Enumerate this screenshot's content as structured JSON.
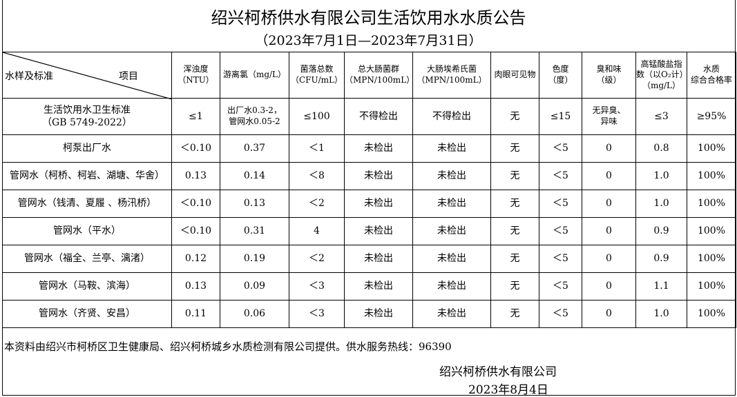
{
  "title": "绍兴柯桥供水有限公司生活饮用水水质公告",
  "subtitle": "（2023年7月1日—2023年7月31日）",
  "header": {
    "corner_left": "水样及标准",
    "corner_right": "项目",
    "columns": [
      [
        "浑浊度",
        "（NTU）"
      ],
      [
        "游离氯（mg/L）"
      ],
      [
        "菌落总数",
        "（CFU/mL）"
      ],
      [
        "总大肠菌群",
        "（MPN/100mL）"
      ],
      [
        "大肠埃希氏菌",
        "（MPN/100mL）"
      ],
      [
        "肉眼可见物"
      ],
      [
        "色度",
        "（度）"
      ],
      [
        "臭和味",
        "（级）"
      ],
      [
        "高锰酸盐指",
        "数（以O₂计）",
        "（mg/L）"
      ],
      [
        "水质",
        "综合合格率"
      ]
    ]
  },
  "standard": {
    "name": [
      "生活饮用水卫生标准",
      "（GB 5749-2022）"
    ],
    "values": [
      [
        "≤1"
      ],
      [
        "出厂水0.3-2，",
        "管网水0.05-2"
      ],
      [
        "≤100"
      ],
      [
        "不得检出"
      ],
      [
        "不得检出"
      ],
      [
        "无"
      ],
      [
        "≤15"
      ],
      [
        "无异臭、",
        "异味"
      ],
      [
        "≤3"
      ],
      [
        "≥95%"
      ]
    ]
  },
  "rows": [
    {
      "name": "柯泵出厂水",
      "values": [
        "＜0.10",
        "0.37",
        "＜1",
        "未检出",
        "未检出",
        "无",
        "＜5",
        "0",
        "0.8",
        "100%"
      ]
    },
    {
      "name": "管网水（柯桥、柯岩、湖塘、华舍）",
      "values": [
        "0.13",
        "0.14",
        "＜8",
        "未检出",
        "未检出",
        "无",
        "＜5",
        "0",
        "1.0",
        "100%"
      ]
    },
    {
      "name": "管网水（钱清、夏履 、杨汛桥）",
      "values": [
        "＜0.10",
        "0.13",
        "＜2",
        "未检出",
        "未检出",
        "无",
        "＜5",
        "0",
        "1.0",
        "100%"
      ]
    },
    {
      "name": "管网水（平水）",
      "values": [
        "＜0.10",
        "0.31",
        "4",
        "未检出",
        "未检出",
        "无",
        "＜5",
        "0",
        "0.9",
        "100%"
      ]
    },
    {
      "name": "管网水（福全、兰亭、漓渚）",
      "values": [
        "0.12",
        "0.19",
        "＜2",
        "未检出",
        "未检出",
        "无",
        "＜5",
        "0",
        "0.9",
        "100%"
      ]
    },
    {
      "name": "管网水（马鞍、滨海）",
      "values": [
        "0.13",
        "0.09",
        "＜3",
        "未检出",
        "未检出",
        "无",
        "＜5",
        "0",
        "1.1",
        "100%"
      ]
    },
    {
      "name": "管网水（齐贤、安昌）",
      "values": [
        "0.11",
        "0.06",
        "＜3",
        "未检出",
        "未检出",
        "无",
        "＜5",
        "0",
        "1.0",
        "100%"
      ]
    }
  ],
  "footer": {
    "source": "本资料由绍兴市柯桥区卫生健康局、绍兴柯桥城乡水质检测有限公司提供。供水服务热线：96390",
    "organization": "绍兴柯桥供水有限公司",
    "date": "2023年8月4日"
  }
}
